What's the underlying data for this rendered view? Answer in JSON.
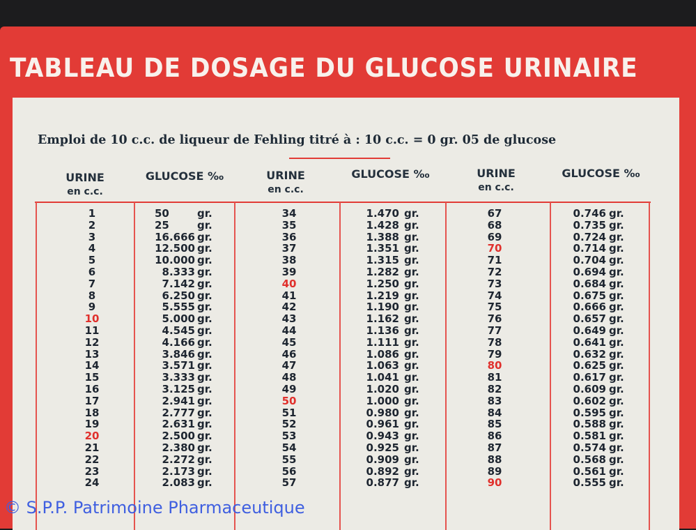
{
  "title": "TABLEAU DE DOSAGE DU GLUCOSE URINAIRE",
  "subtitle": "Emploi de 10 c.c. de liqueur de Fehling titré à : 10 c.c. = 0 gr. 05 de glucose",
  "headers": {
    "urine_line1": "URINE",
    "urine_line2": "en c.c.",
    "glucose": "GLUCOSE ‰"
  },
  "unit": "gr.",
  "colors": {
    "card_red": "#e23b36",
    "highlight_red": "#e0302c",
    "text": "#1d2530"
  },
  "columns": [
    {
      "rows": [
        [
          "1",
          "50"
        ],
        [
          "2",
          "25"
        ],
        [
          "3",
          "16.666"
        ],
        [
          "4",
          "12.500"
        ],
        [
          "5",
          "10.000"
        ],
        [
          "6",
          "8.333"
        ],
        [
          "7",
          "7.142"
        ],
        [
          "8",
          "6.250"
        ],
        [
          "9",
          "5.555"
        ],
        [
          "10",
          "5.000"
        ],
        [
          "11",
          "4.545"
        ],
        [
          "12",
          "4.166"
        ],
        [
          "13",
          "3.846"
        ],
        [
          "14",
          "3.571"
        ],
        [
          "15",
          "3.333"
        ],
        [
          "16",
          "3.125"
        ],
        [
          "17",
          "2.941"
        ],
        [
          "18",
          "2.777"
        ],
        [
          "19",
          "2.631"
        ],
        [
          "20",
          "2.500"
        ],
        [
          "21",
          "2.380"
        ],
        [
          "22",
          "2.272"
        ],
        [
          "23",
          "2.173"
        ],
        [
          "24",
          "2.083"
        ]
      ]
    },
    {
      "rows": [
        [
          "34",
          "1.470"
        ],
        [
          "35",
          "1.428"
        ],
        [
          "36",
          "1.388"
        ],
        [
          "37",
          "1.351"
        ],
        [
          "38",
          "1.315"
        ],
        [
          "39",
          "1.282"
        ],
        [
          "40",
          "1.250"
        ],
        [
          "41",
          "1.219"
        ],
        [
          "42",
          "1.190"
        ],
        [
          "43",
          "1.162"
        ],
        [
          "44",
          "1.136"
        ],
        [
          "45",
          "1.111"
        ],
        [
          "46",
          "1.086"
        ],
        [
          "47",
          "1.063"
        ],
        [
          "48",
          "1.041"
        ],
        [
          "49",
          "1.020"
        ],
        [
          "50",
          "1.000"
        ],
        [
          "51",
          "0.980"
        ],
        [
          "52",
          "0.961"
        ],
        [
          "53",
          "0.943"
        ],
        [
          "54",
          "0.925"
        ],
        [
          "55",
          "0.909"
        ],
        [
          "56",
          "0.892"
        ],
        [
          "57",
          "0.877"
        ]
      ]
    },
    {
      "rows": [
        [
          "67",
          "0.746"
        ],
        [
          "68",
          "0.735"
        ],
        [
          "69",
          "0.724"
        ],
        [
          "70",
          "0.714"
        ],
        [
          "71",
          "0.704"
        ],
        [
          "72",
          "0.694"
        ],
        [
          "73",
          "0.684"
        ],
        [
          "74",
          "0.675"
        ],
        [
          "75",
          "0.666"
        ],
        [
          "76",
          "0.657"
        ],
        [
          "77",
          "0.649"
        ],
        [
          "78",
          "0.641"
        ],
        [
          "79",
          "0.632"
        ],
        [
          "80",
          "0.625"
        ],
        [
          "81",
          "0.617"
        ],
        [
          "82",
          "0.609"
        ],
        [
          "83",
          "0.602"
        ],
        [
          "84",
          "0.595"
        ],
        [
          "85",
          "0.588"
        ],
        [
          "86",
          "0.581"
        ],
        [
          "87",
          "0.574"
        ],
        [
          "88",
          "0.568"
        ],
        [
          "89",
          "0.561"
        ],
        [
          "90",
          "0.555"
        ]
      ]
    }
  ],
  "highlighted_urine": [
    "10",
    "20",
    "40",
    "50",
    "70",
    "80",
    "90"
  ],
  "watermark": "© S.P.P. Patrimoine Pharmaceutique"
}
